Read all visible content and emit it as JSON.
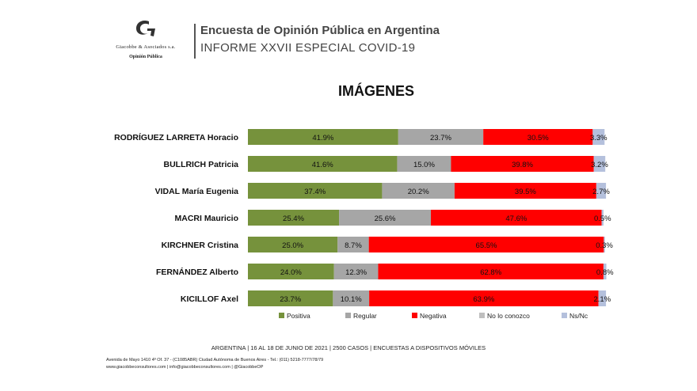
{
  "header": {
    "brand": "Giacobbe & Asociados s.a.",
    "brand_sub": "Opinión Pública",
    "title": "Encuesta de Opinión Pública en Argentina",
    "subtitle": "INFORME XXVII ESPECIAL COVID-19"
  },
  "chart_data": {
    "type": "bar",
    "orientation": "horizontal",
    "stacked": true,
    "title": "IMÁGENES",
    "categories": [
      "RODRÍGUEZ LARRETA Horacio",
      "BULLRICH Patricia",
      "VIDAL María Eugenia",
      "MACRI Mauricio",
      "KIRCHNER Cristina",
      "FERNÁNDEZ Alberto",
      "KICILLOF Axel"
    ],
    "series": [
      {
        "name": "Positiva",
        "color": "#76923c",
        "values": [
          41.9,
          41.6,
          37.4,
          25.4,
          25.0,
          24.0,
          23.7
        ]
      },
      {
        "name": "Regular",
        "color": "#a6a6a6",
        "values": [
          23.7,
          15.0,
          20.2,
          25.6,
          8.7,
          12.3,
          10.1
        ]
      },
      {
        "name": "Negativa",
        "color": "#ff0000",
        "values": [
          30.5,
          39.8,
          39.5,
          47.6,
          65.5,
          62.8,
          63.9
        ]
      },
      {
        "name": "No lo conozco",
        "color": "#bfbfbf",
        "values": [
          0.0,
          0.0,
          0.0,
          0.0,
          0.0,
          0.0,
          0.0
        ]
      },
      {
        "name": "Ns/Nc",
        "color": "#b4c0dc",
        "values": [
          3.3,
          3.2,
          2.7,
          0.5,
          0.3,
          0.8,
          2.1
        ]
      }
    ],
    "value_labels": [
      [
        "41.9%",
        "23.7%",
        "30.5%",
        "3.3%"
      ],
      [
        "41.6%",
        "15.0%",
        "39.8%",
        "3.2%"
      ],
      [
        "37.4%",
        "20.2%",
        "39.5%",
        "2.7%"
      ],
      [
        "25.4%",
        "25.6%",
        "47.6%",
        "0.5%"
      ],
      [
        "25.0%",
        "8.7%",
        "65.5%",
        "0.3%"
      ],
      [
        "24.0%",
        "12.3%",
        "62.8%",
        "0.8%"
      ],
      [
        "23.7%",
        "10.1%",
        "63.9%",
        "2.1%"
      ]
    ],
    "xlim": [
      0,
      100
    ],
    "legend_position": "bottom"
  },
  "footer": {
    "line": "ARGENTINA | 16 AL 18 DE JUNIO DE 2021 | 2500 CASOS | ENCUESTAS A DISPOSITIVOS MÓVILES",
    "address": "Avenida de Mayo 1410 4º Of. 37 - (C1085ABR) Ciudad Autónoma de Buenos Aires - Tel.: (011) 5218-7777/78/79",
    "contacts": "www.giacobbeconsultores.com | info@giacobbeconsultores.com | @GiacobbeOP"
  },
  "colors": {
    "positive": "#76923c",
    "regular": "#a6a6a6",
    "negative": "#ff0000",
    "unknown": "#bfbfbf",
    "nsnc": "#b4c0dc"
  }
}
